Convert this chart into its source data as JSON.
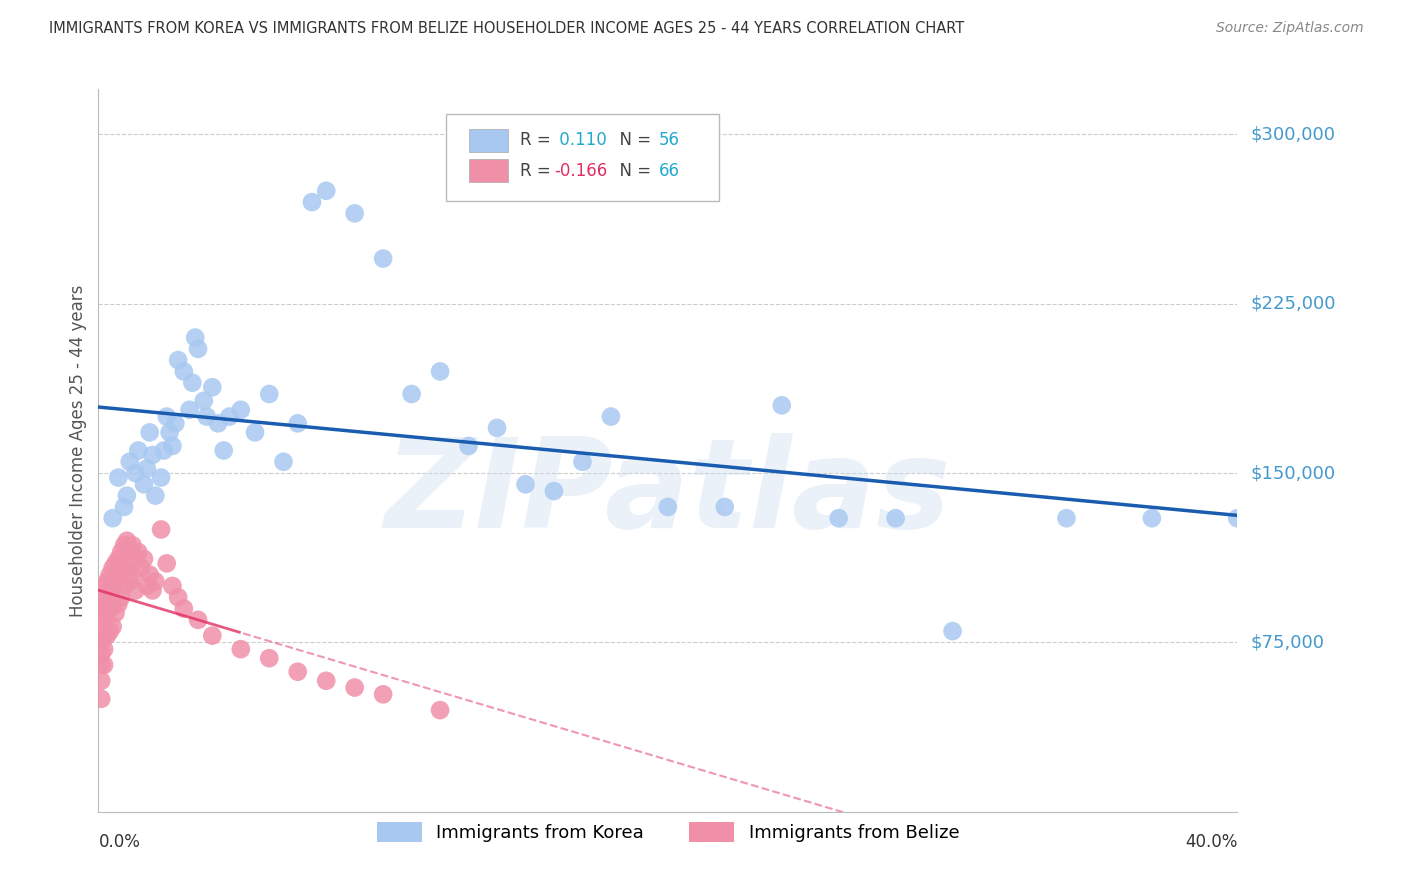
{
  "title": "IMMIGRANTS FROM KOREA VS IMMIGRANTS FROM BELIZE HOUSEHOLDER INCOME AGES 25 - 44 YEARS CORRELATION CHART",
  "source": "Source: ZipAtlas.com",
  "ylabel": "Householder Income Ages 25 - 44 years",
  "ytick_values": [
    75000,
    150000,
    225000,
    300000
  ],
  "ytick_labels": [
    "$75,000",
    "$150,000",
    "$225,000",
    "$300,000"
  ],
  "ymin": 0,
  "ymax": 320000,
  "xmin": 0.0,
  "xmax": 0.4,
  "korea_R": 0.11,
  "korea_N": 56,
  "belize_R": -0.166,
  "belize_N": 66,
  "korea_color": "#a8c8f0",
  "korea_edge_color": "#a8c8f0",
  "korea_line_color": "#1a5cb0",
  "belize_color": "#f090a8",
  "belize_edge_color": "#f090a8",
  "belize_line_color": "#e03060",
  "watermark": "ZIPatlas",
  "legend_label_korea": "Immigrants from Korea",
  "legend_label_belize": "Immigrants from Belize",
  "background_color": "#ffffff",
  "grid_color": "#cccccc",
  "korea_x": [
    0.005,
    0.007,
    0.009,
    0.01,
    0.011,
    0.013,
    0.014,
    0.016,
    0.017,
    0.018,
    0.019,
    0.02,
    0.022,
    0.023,
    0.024,
    0.025,
    0.026,
    0.027,
    0.028,
    0.03,
    0.032,
    0.033,
    0.034,
    0.035,
    0.037,
    0.038,
    0.04,
    0.042,
    0.044,
    0.046,
    0.05,
    0.055,
    0.06,
    0.065,
    0.07,
    0.075,
    0.08,
    0.09,
    0.1,
    0.11,
    0.12,
    0.13,
    0.14,
    0.15,
    0.16,
    0.17,
    0.18,
    0.2,
    0.22,
    0.24,
    0.26,
    0.28,
    0.3,
    0.34,
    0.37,
    0.4
  ],
  "korea_y": [
    130000,
    148000,
    135000,
    140000,
    155000,
    150000,
    160000,
    145000,
    152000,
    168000,
    158000,
    140000,
    148000,
    160000,
    175000,
    168000,
    162000,
    172000,
    200000,
    195000,
    178000,
    190000,
    210000,
    205000,
    182000,
    175000,
    188000,
    172000,
    160000,
    175000,
    178000,
    168000,
    185000,
    155000,
    172000,
    270000,
    275000,
    265000,
    245000,
    185000,
    195000,
    162000,
    170000,
    145000,
    142000,
    155000,
    175000,
    135000,
    135000,
    180000,
    130000,
    130000,
    80000,
    130000,
    130000,
    130000
  ],
  "belize_x": [
    0.001,
    0.001,
    0.001,
    0.001,
    0.001,
    0.001,
    0.001,
    0.001,
    0.002,
    0.002,
    0.002,
    0.002,
    0.002,
    0.002,
    0.003,
    0.003,
    0.003,
    0.003,
    0.004,
    0.004,
    0.004,
    0.004,
    0.005,
    0.005,
    0.005,
    0.005,
    0.006,
    0.006,
    0.006,
    0.007,
    0.007,
    0.007,
    0.008,
    0.008,
    0.008,
    0.009,
    0.009,
    0.01,
    0.01,
    0.011,
    0.011,
    0.012,
    0.012,
    0.013,
    0.013,
    0.014,
    0.015,
    0.016,
    0.017,
    0.018,
    0.019,
    0.02,
    0.022,
    0.024,
    0.026,
    0.028,
    0.03,
    0.035,
    0.04,
    0.05,
    0.06,
    0.07,
    0.08,
    0.09,
    0.1,
    0.12
  ],
  "belize_y": [
    95000,
    88000,
    80000,
    75000,
    70000,
    65000,
    58000,
    50000,
    100000,
    92000,
    85000,
    78000,
    72000,
    65000,
    102000,
    95000,
    88000,
    78000,
    105000,
    98000,
    90000,
    80000,
    108000,
    100000,
    92000,
    82000,
    110000,
    102000,
    88000,
    112000,
    105000,
    92000,
    115000,
    108000,
    95000,
    118000,
    100000,
    120000,
    108000,
    115000,
    102000,
    118000,
    105000,
    112000,
    98000,
    115000,
    108000,
    112000,
    100000,
    105000,
    98000,
    102000,
    125000,
    110000,
    100000,
    95000,
    90000,
    85000,
    78000,
    72000,
    68000,
    62000,
    58000,
    55000,
    52000,
    45000
  ]
}
